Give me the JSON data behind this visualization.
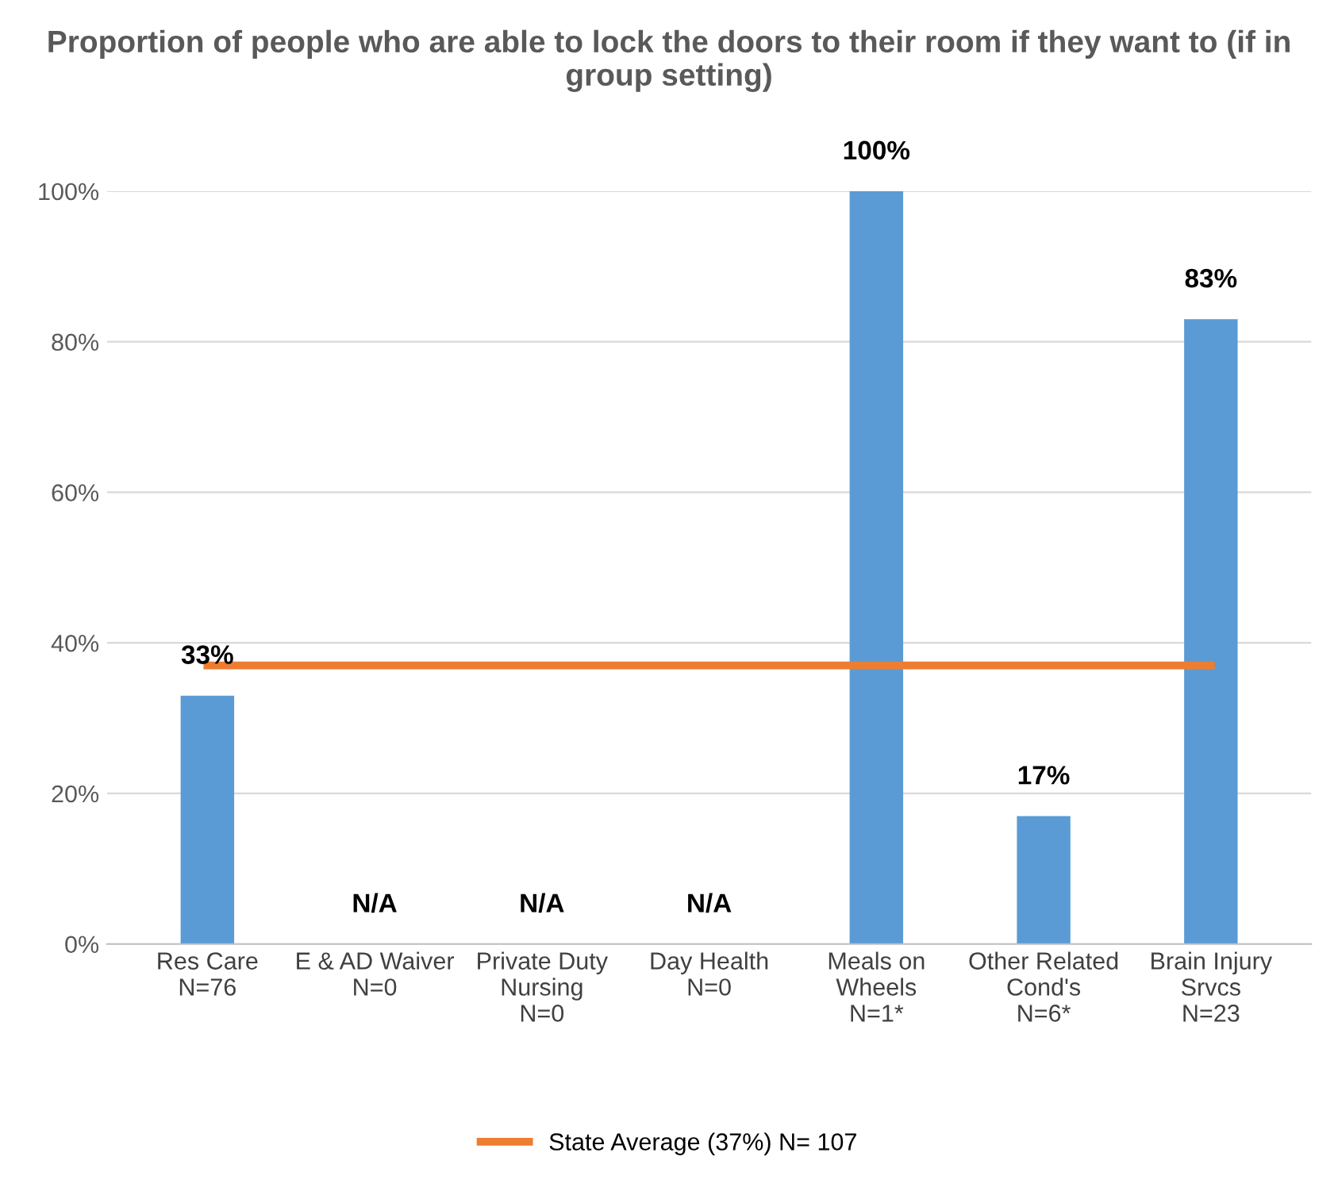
{
  "chart_data": {
    "type": "bar",
    "title": "Proportion of people who are able to lock the doors to their room if they want to (if in group setting)",
    "categories": [
      "Res Care\nN=76",
      "E & AD Waiver\nN=0",
      "Private Duty\nNursing\nN=0",
      "Day Health\nN=0",
      "Meals on\nWheels\nN=1*",
      "Other Related\nCond's\nN=6*",
      "Brain Injury\nSrvcs\nN=23"
    ],
    "series": [
      {
        "color": "#5b9bd5",
        "values": [
          33,
          null,
          null,
          null,
          100,
          17,
          83
        ],
        "value_labels": [
          "33%",
          "N/A",
          "N/A",
          "N/A",
          "100%",
          "17%",
          "83%"
        ]
      },
      {
        "type": "line",
        "name": "State Average (37%) N= 107",
        "color": "#ed7d31",
        "values": [
          37,
          37,
          37,
          37,
          37,
          37,
          37
        ]
      }
    ],
    "ylim": [
      0,
      100
    ],
    "yticks": [
      {
        "value": 0,
        "label": "0%"
      },
      {
        "value": 20,
        "label": "20%"
      },
      {
        "value": 40,
        "label": "40%"
      },
      {
        "value": 60,
        "label": "60%"
      },
      {
        "value": 80,
        "label": "80%"
      },
      {
        "value": 100,
        "label": "100%"
      }
    ],
    "grid": "y",
    "legend": "bottom",
    "marker": "none",
    "line_style": "solid"
  }
}
